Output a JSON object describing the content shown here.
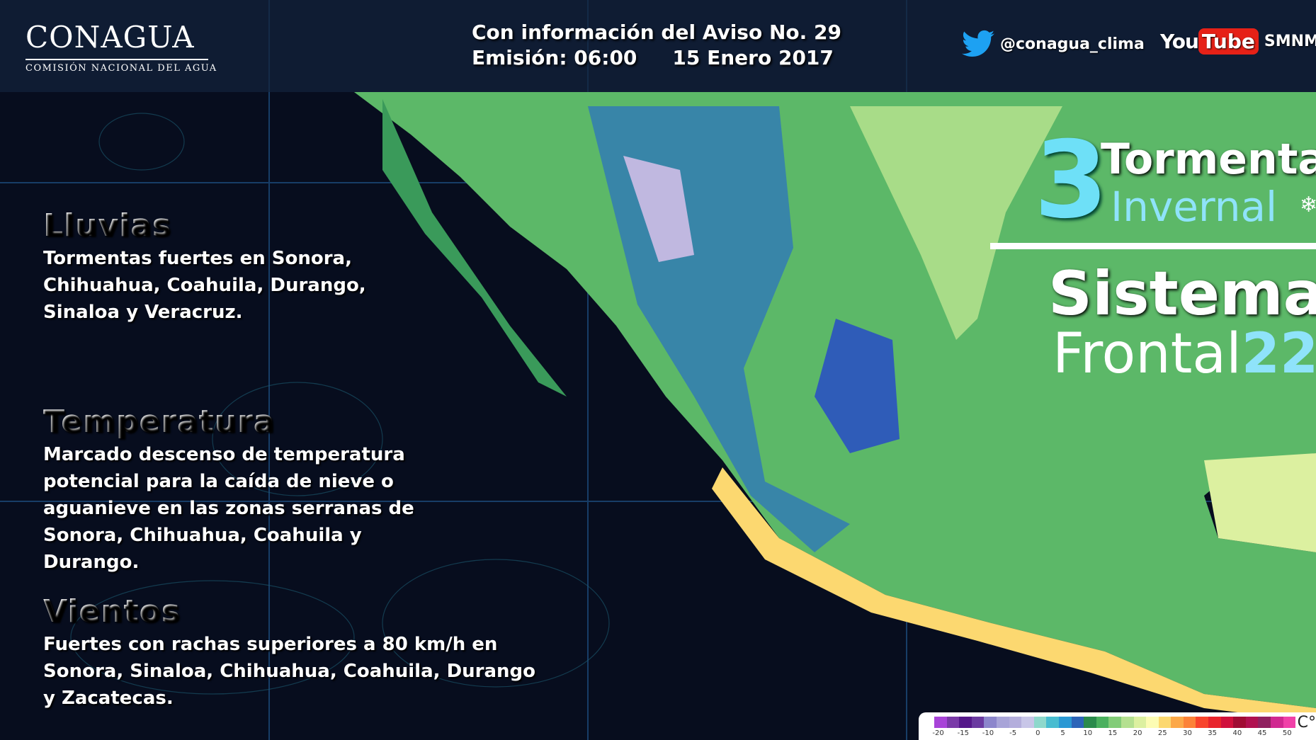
{
  "header": {
    "logo": {
      "name": "CONAGUA",
      "subtitle": "COMISIÓN NACIONAL DEL AGUA"
    },
    "info_line1": "Con información del Aviso No. 29",
    "emision": "Emisión: 06:00",
    "date": "15 Enero 2017",
    "twitter": {
      "icon": "twitter-bird-icon",
      "handle": "@conagua_clima"
    },
    "youtube": {
      "you": "You",
      "tube": "Tube",
      "channel": "SMNMEXICO"
    }
  },
  "sections": [
    {
      "title": "Lluvias",
      "text": "Tormentas fuertes en Sonora, Chihuahua, Coahuila, Durango, Sinaloa y Veracruz."
    },
    {
      "title": "Temperatura",
      "text": "Marcado descenso de temperatura potencial para la caída de nieve o aguanieve en las zonas serranas de Sonora, Chihuahua, Coahuila y Durango."
    },
    {
      "title": "Vientos",
      "text": "Fuertes con rachas superiores a 80 km/h en Sonora, Sinaloa, Chihuahua, Coahuila, Durango y Zacatecas."
    }
  ],
  "headline": {
    "number": "3",
    "line1": "Tormenta",
    "line2": "Invernal",
    "snow_icon": "snowflake-icon",
    "line3": "Sistema",
    "line4": "Frontal",
    "number2": "22"
  },
  "legend": {
    "unit": "C°",
    "ticks": [
      "-20",
      "-15",
      "-10",
      "-5",
      "0",
      "5",
      "10",
      "15",
      "20",
      "25",
      "30",
      "35",
      "40",
      "45",
      "50"
    ],
    "colors": [
      "#a844d8",
      "#7a3aa8",
      "#55188a",
      "#6a3aa0",
      "#8c86cc",
      "#a8a4d8",
      "#b4aedc",
      "#c8c6e8",
      "#8ed8cc",
      "#48bcd0",
      "#2a98d4",
      "#2c64b8",
      "#2a8a4c",
      "#4ab05e",
      "#82cc78",
      "#b4e090",
      "#dcf0a0",
      "#fcfcb4",
      "#fcd870",
      "#fca848",
      "#fc8238",
      "#f8442c",
      "#e8242c",
      "#d0103c",
      "#a00c34",
      "#b01050",
      "#902060",
      "#d02890",
      "#f040a8"
    ]
  }
}
